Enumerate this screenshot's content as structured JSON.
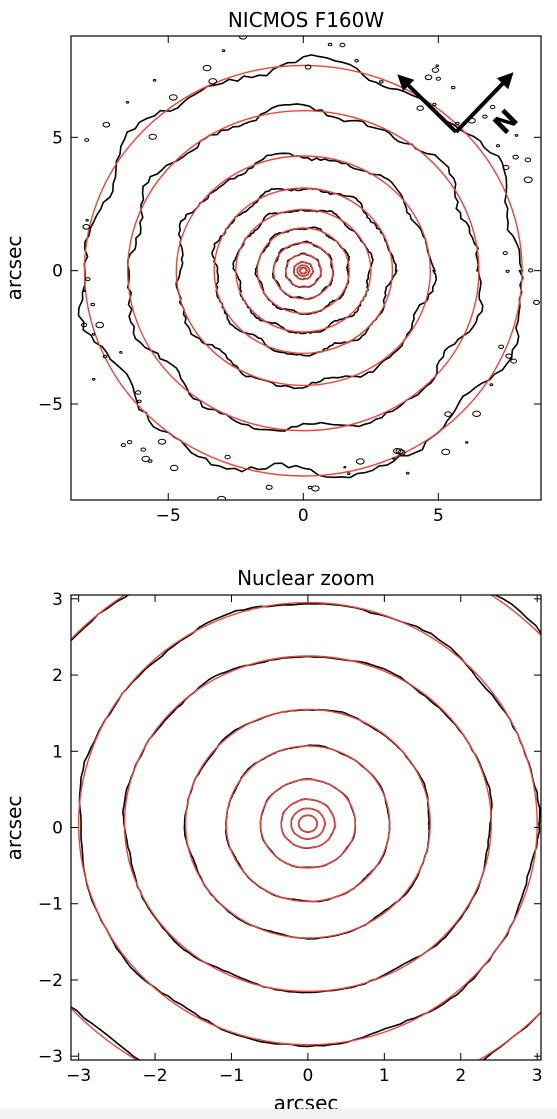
{
  "chart_data": [
    {
      "type": "contour",
      "title": "NICMOS F160W",
      "xlabel": "",
      "ylabel": "arcsec",
      "xlim": [
        -8.6,
        8.8
      ],
      "ylim": [
        -8.6,
        8.8
      ],
      "xticks": [
        -5,
        0,
        5
      ],
      "yticks": [
        -5,
        0,
        5
      ],
      "tick_labels_x": [
        "−5",
        "0",
        "5"
      ],
      "tick_labels_y": [
        "−5",
        "0",
        "5"
      ],
      "center": [
        0.0,
        0.0
      ],
      "isophote_semi_axes": [
        [
          0.12,
          0.11
        ],
        [
          0.22,
          0.2
        ],
        [
          0.35,
          0.32
        ],
        [
          0.65,
          0.62
        ],
        [
          1.1,
          1.05
        ],
        [
          1.7,
          1.6
        ],
        [
          2.5,
          2.3
        ],
        [
          3.3,
          3.1
        ],
        [
          4.7,
          4.3
        ],
        [
          6.5,
          6.0
        ],
        [
          8.1,
          7.7
        ]
      ],
      "model_colors": {
        "data": "#000000",
        "model": "#e8463b"
      },
      "orientation_labels": {
        "north": "N"
      }
    },
    {
      "type": "contour",
      "title": "Nuclear zoom",
      "xlabel": "arcsec",
      "ylabel": "arcsec",
      "xlim": [
        -3.1,
        3.05
      ],
      "ylim": [
        -3.05,
        3.05
      ],
      "xticks": [
        -3,
        -2,
        -1,
        0,
        1,
        2,
        3
      ],
      "yticks": [
        -3,
        -2,
        -1,
        0,
        1,
        2,
        3
      ],
      "tick_labels_x": [
        "−3",
        "−2",
        "−1",
        "0",
        "1",
        "2",
        "3"
      ],
      "tick_labels_y": [
        "−3",
        "−2",
        "−1",
        "0",
        "1",
        "2",
        "3"
      ],
      "center": [
        0.0,
        0.05
      ],
      "isophote_semi_axes": [
        [
          0.12,
          0.11
        ],
        [
          0.22,
          0.2
        ],
        [
          0.35,
          0.32
        ],
        [
          0.62,
          0.58
        ],
        [
          1.07,
          1.02
        ],
        [
          1.6,
          1.5
        ],
        [
          2.4,
          2.2
        ],
        [
          3.0,
          2.9
        ],
        [
          4.1,
          3.7
        ]
      ],
      "model_colors": {
        "data": "#000000",
        "model": "#e8463b"
      }
    }
  ]
}
